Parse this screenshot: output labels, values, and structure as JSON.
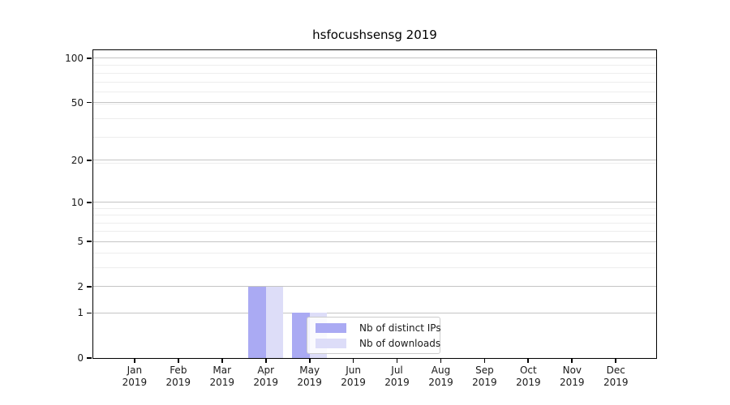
{
  "figure": {
    "title": "hsfocushsensg 2019"
  },
  "chart_data": {
    "type": "bar",
    "title": "hsfocushsensg 2019",
    "categories": [
      "Jan 2019",
      "Feb 2019",
      "Mar 2019",
      "Apr 2019",
      "May 2019",
      "Jun 2019",
      "Jul 2019",
      "Aug 2019",
      "Sep 2019",
      "Oct 2019",
      "Nov 2019",
      "Dec 2019"
    ],
    "x_tick_months": [
      "Jan",
      "Feb",
      "Mar",
      "Apr",
      "May",
      "Jun",
      "Jul",
      "Aug",
      "Sep",
      "Oct",
      "Nov",
      "Dec"
    ],
    "x_tick_year": "2019",
    "series": [
      {
        "name": "Nb of distinct IPs",
        "color": "#aaaaf3",
        "values": [
          0,
          0,
          0,
          2,
          1,
          0,
          0,
          0,
          0,
          0,
          0,
          0
        ]
      },
      {
        "name": "Nb of downloads",
        "color": "#ddddf8",
        "values": [
          0,
          0,
          0,
          2,
          1,
          0,
          0,
          0,
          0,
          0,
          0,
          0
        ]
      }
    ],
    "y_scale": "log10(value+1)",
    "ylim": [
      0,
      113
    ],
    "y_major_ticks": [
      0,
      1,
      2,
      5,
      10,
      20,
      50,
      100
    ],
    "y_minor_ticks": [
      3,
      4,
      6,
      7,
      8,
      9,
      19,
      29,
      39,
      49,
      59,
      69,
      79,
      89
    ],
    "grid": true,
    "legend_position": "inside-lower-center-right"
  },
  "colors": {
    "major_grid": "#c4c4c4",
    "minor_grid": "#ededed",
    "spine": "#000000",
    "text": "#1a1a1a",
    "legend_border": "#cccccc"
  }
}
